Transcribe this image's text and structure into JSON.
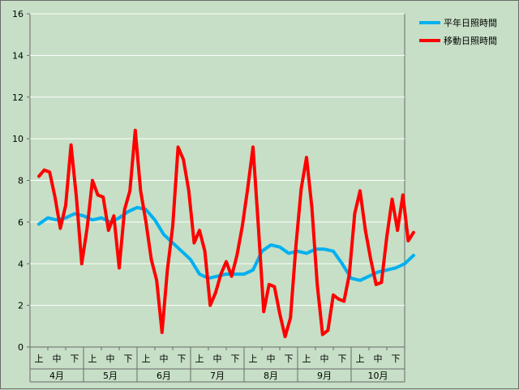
{
  "chart_data": {
    "type": "line",
    "ylim": [
      0,
      16
    ],
    "yticks": [
      0,
      2,
      4,
      6,
      8,
      10,
      12,
      14,
      16
    ],
    "grid": true,
    "legend_position": "top-right",
    "months": [
      "4月",
      "5月",
      "6月",
      "7月",
      "8月",
      "9月",
      "10月"
    ],
    "periods": [
      "上",
      "中",
      "下"
    ],
    "series": [
      {
        "name": "平年日照時間",
        "color": "#00b0f0",
        "x": [
          0,
          0.5,
          1,
          1.5,
          2,
          2.5,
          3,
          3.5,
          4,
          4.5,
          5,
          5.5,
          6,
          6.5,
          7,
          7.5,
          8,
          8.5,
          9,
          9.5,
          10,
          10.5,
          11,
          11.5,
          12,
          12.5,
          13,
          13.5,
          14,
          14.5,
          15,
          15.5,
          16,
          16.5,
          17,
          17.5,
          18,
          18.5,
          19,
          19.5,
          20,
          20.5,
          21
        ],
        "values": [
          5.9,
          6.2,
          6.1,
          6.2,
          6.4,
          6.3,
          6.1,
          6.2,
          6.0,
          6.2,
          6.5,
          6.7,
          6.6,
          6.1,
          5.4,
          5.0,
          4.6,
          4.2,
          3.5,
          3.3,
          3.4,
          3.5,
          3.5,
          3.5,
          3.7,
          4.6,
          4.9,
          4.8,
          4.5,
          4.6,
          4.5,
          4.7,
          4.7,
          4.6,
          4.0,
          3.3,
          3.2,
          3.4,
          3.6,
          3.7,
          3.8,
          4.0,
          4.4
        ]
      },
      {
        "name": "移動日照時間",
        "color": "#ff0000",
        "x": [
          0,
          0.3,
          0.6,
          0.9,
          1.2,
          1.5,
          1.8,
          2.1,
          2.4,
          2.7,
          3.0,
          3.3,
          3.6,
          3.9,
          4.2,
          4.5,
          4.8,
          5.1,
          5.4,
          5.7,
          6.0,
          6.3,
          6.6,
          6.9,
          7.2,
          7.5,
          7.8,
          8.1,
          8.4,
          8.7,
          9.0,
          9.3,
          9.6,
          9.9,
          10.2,
          10.5,
          10.8,
          11.1,
          11.4,
          11.7,
          12.0,
          12.3,
          12.6,
          12.9,
          13.2,
          13.5,
          13.8,
          14.1,
          14.4,
          14.7,
          15.0,
          15.3,
          15.6,
          15.9,
          16.2,
          16.5,
          16.8,
          17.1,
          17.4,
          17.7,
          18.0,
          18.3,
          18.6,
          18.9,
          19.2,
          19.5,
          19.8,
          20.1,
          20.4,
          20.7,
          21.0
        ],
        "values": [
          8.2,
          8.5,
          8.4,
          7.2,
          5.7,
          6.8,
          9.7,
          7.2,
          4.0,
          5.7,
          8.0,
          7.3,
          7.2,
          5.6,
          6.3,
          3.8,
          6.6,
          7.5,
          10.4,
          7.5,
          6.0,
          4.2,
          3.2,
          0.7,
          3.7,
          5.8,
          9.6,
          9.0,
          7.5,
          5.0,
          5.6,
          4.6,
          2.0,
          2.6,
          3.5,
          4.1,
          3.4,
          4.4,
          5.8,
          7.6,
          9.6,
          5.8,
          1.7,
          3.0,
          2.9,
          1.6,
          0.5,
          1.4,
          4.8,
          7.6,
          9.1,
          6.7,
          3.0,
          0.6,
          0.8,
          2.5,
          2.3,
          2.2,
          3.5,
          6.4,
          7.5,
          5.6,
          4.2,
          3.0,
          3.1,
          5.3,
          7.1,
          5.6,
          7.3,
          5.1,
          5.5
        ]
      }
    ]
  }
}
